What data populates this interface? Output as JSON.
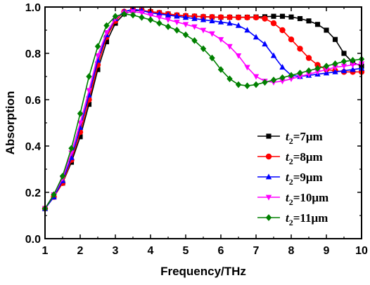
{
  "chart_data": {
    "type": "line",
    "xlabel": "Frequency/THz",
    "ylabel": "Absorption",
    "xlim": [
      1,
      10
    ],
    "ylim": [
      0.0,
      1.0
    ],
    "xticks": [
      "1",
      "2",
      "3",
      "4",
      "5",
      "6",
      "7",
      "8",
      "9",
      "10"
    ],
    "yticks": [
      "0.0",
      "0.2",
      "0.4",
      "0.6",
      "0.8",
      "1.0"
    ],
    "grid": false,
    "legend_position": "bottom-right",
    "series": [
      {
        "name": "t2=7μm",
        "label_var": "t",
        "label_sub": "2",
        "label_rest": "=7μm",
        "color": "#000000",
        "marker": "square",
        "x": [
          1.0,
          1.25,
          1.5,
          1.75,
          2.0,
          2.25,
          2.5,
          2.75,
          3.0,
          3.25,
          3.5,
          3.75,
          4.0,
          4.25,
          4.5,
          4.75,
          5.0,
          5.25,
          5.5,
          5.75,
          6.0,
          6.25,
          6.5,
          6.75,
          7.0,
          7.25,
          7.5,
          7.75,
          8.0,
          8.25,
          8.5,
          8.75,
          9.0,
          9.25,
          9.5,
          9.75,
          10.0
        ],
        "y": [
          0.13,
          0.18,
          0.24,
          0.33,
          0.44,
          0.58,
          0.73,
          0.85,
          0.93,
          0.97,
          0.985,
          0.985,
          0.98,
          0.975,
          0.97,
          0.965,
          0.962,
          0.96,
          0.958,
          0.957,
          0.956,
          0.956,
          0.956,
          0.956,
          0.957,
          0.958,
          0.96,
          0.96,
          0.957,
          0.95,
          0.94,
          0.925,
          0.9,
          0.86,
          0.8,
          0.76,
          0.745
        ]
      },
      {
        "name": "t2=8μm",
        "label_var": "t",
        "label_sub": "2",
        "label_rest": "=8μm",
        "color": "#ff0000",
        "marker": "circle",
        "x": [
          1.0,
          1.25,
          1.5,
          1.75,
          2.0,
          2.25,
          2.5,
          2.75,
          3.0,
          3.25,
          3.5,
          3.75,
          4.0,
          4.25,
          4.5,
          4.75,
          5.0,
          5.25,
          5.5,
          5.75,
          6.0,
          6.25,
          6.5,
          6.75,
          7.0,
          7.25,
          7.5,
          7.75,
          8.0,
          8.25,
          8.5,
          8.75,
          9.0,
          9.25,
          9.5,
          9.75,
          10.0
        ],
        "y": [
          0.13,
          0.18,
          0.24,
          0.34,
          0.46,
          0.6,
          0.75,
          0.87,
          0.94,
          0.98,
          0.99,
          0.985,
          0.98,
          0.975,
          0.97,
          0.965,
          0.962,
          0.96,
          0.958,
          0.957,
          0.956,
          0.956,
          0.955,
          0.955,
          0.955,
          0.95,
          0.93,
          0.9,
          0.86,
          0.82,
          0.78,
          0.75,
          0.73,
          0.725,
          0.72,
          0.72,
          0.72
        ]
      },
      {
        "name": "t2=9μm",
        "label_var": "t",
        "label_sub": "2",
        "label_rest": "=9μm",
        "color": "#0000ff",
        "marker": "triangle-up",
        "x": [
          1.0,
          1.25,
          1.5,
          1.75,
          2.0,
          2.25,
          2.5,
          2.75,
          3.0,
          3.25,
          3.5,
          3.75,
          4.0,
          4.25,
          4.5,
          4.75,
          5.0,
          5.25,
          5.5,
          5.75,
          6.0,
          6.25,
          6.5,
          6.75,
          7.0,
          7.25,
          7.5,
          7.75,
          8.0,
          8.25,
          8.5,
          8.75,
          9.0,
          9.25,
          9.5,
          9.75,
          10.0
        ],
        "y": [
          0.13,
          0.18,
          0.25,
          0.35,
          0.48,
          0.62,
          0.77,
          0.88,
          0.95,
          0.98,
          0.99,
          0.985,
          0.975,
          0.97,
          0.965,
          0.96,
          0.955,
          0.95,
          0.945,
          0.94,
          0.935,
          0.93,
          0.92,
          0.9,
          0.87,
          0.84,
          0.79,
          0.74,
          0.705,
          0.7,
          0.705,
          0.71,
          0.715,
          0.72,
          0.725,
          0.73,
          0.735
        ]
      },
      {
        "name": "t2=10μm",
        "label_var": "t",
        "label_sub": "2",
        "label_rest": "=10μm",
        "color": "#ff00ff",
        "marker": "triangle-down",
        "x": [
          1.0,
          1.25,
          1.5,
          1.75,
          2.0,
          2.25,
          2.5,
          2.75,
          3.0,
          3.25,
          3.5,
          3.75,
          4.0,
          4.25,
          4.5,
          4.75,
          5.0,
          5.25,
          5.5,
          5.75,
          6.0,
          6.25,
          6.5,
          6.75,
          7.0,
          7.25,
          7.5,
          7.75,
          8.0,
          8.25,
          8.5,
          8.75,
          9.0,
          9.25,
          9.5,
          9.75,
          10.0
        ],
        "y": [
          0.13,
          0.19,
          0.26,
          0.37,
          0.5,
          0.64,
          0.79,
          0.89,
          0.95,
          0.975,
          0.98,
          0.975,
          0.965,
          0.955,
          0.945,
          0.935,
          0.925,
          0.915,
          0.9,
          0.885,
          0.86,
          0.83,
          0.79,
          0.74,
          0.7,
          0.68,
          0.675,
          0.68,
          0.69,
          0.7,
          0.71,
          0.72,
          0.73,
          0.74,
          0.745,
          0.75,
          0.755
        ]
      },
      {
        "name": "t2=11μm",
        "label_var": "t",
        "label_sub": "2",
        "label_rest": "=11μm",
        "color": "#008000",
        "marker": "diamond",
        "x": [
          1.0,
          1.25,
          1.5,
          1.75,
          2.0,
          2.25,
          2.5,
          2.75,
          3.0,
          3.25,
          3.5,
          3.75,
          4.0,
          4.25,
          4.5,
          4.75,
          5.0,
          5.25,
          5.5,
          5.75,
          6.0,
          6.25,
          6.5,
          6.75,
          7.0,
          7.25,
          7.5,
          7.75,
          8.0,
          8.25,
          8.5,
          8.75,
          9.0,
          9.25,
          9.5,
          9.75,
          10.0
        ],
        "y": [
          0.13,
          0.19,
          0.27,
          0.39,
          0.54,
          0.7,
          0.83,
          0.92,
          0.96,
          0.97,
          0.965,
          0.955,
          0.945,
          0.93,
          0.915,
          0.9,
          0.88,
          0.855,
          0.82,
          0.78,
          0.73,
          0.69,
          0.665,
          0.66,
          0.665,
          0.675,
          0.685,
          0.695,
          0.705,
          0.715,
          0.725,
          0.735,
          0.745,
          0.755,
          0.765,
          0.77,
          0.775
        ]
      }
    ]
  }
}
